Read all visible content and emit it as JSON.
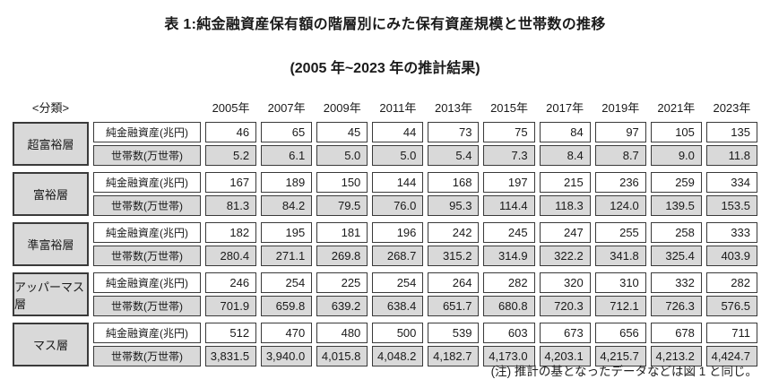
{
  "title": "表 1:純金融資産保有額の階層別にみた保有資産規模と世帯数の推移",
  "subtitle": "(2005 年~2023 年の推計結果)",
  "note": "(注) 推計の基となったデータなどは図 1 と同じ。",
  "colors": {
    "cell_gray": "#d9d9d9",
    "border": "#3a3a3a"
  },
  "table": {
    "classification_header": "<分類>",
    "years": [
      "2005年",
      "2007年",
      "2009年",
      "2011年",
      "2013年",
      "2015年",
      "2017年",
      "2019年",
      "2021年",
      "2023年"
    ],
    "row_labels": {
      "assets": "純金融資産(兆円)",
      "households": "世帯数(万世帯)"
    },
    "groups": [
      {
        "name": "超富裕層",
        "assets": [
          "46",
          "65",
          "45",
          "44",
          "73",
          "75",
          "84",
          "97",
          "105",
          "135"
        ],
        "households": [
          "5.2",
          "6.1",
          "5.0",
          "5.0",
          "5.4",
          "7.3",
          "8.4",
          "8.7",
          "9.0",
          "11.8"
        ]
      },
      {
        "name": "富裕層",
        "assets": [
          "167",
          "189",
          "150",
          "144",
          "168",
          "197",
          "215",
          "236",
          "259",
          "334"
        ],
        "households": [
          "81.3",
          "84.2",
          "79.5",
          "76.0",
          "95.3",
          "114.4",
          "118.3",
          "124.0",
          "139.5",
          "153.5"
        ]
      },
      {
        "name": "準富裕層",
        "assets": [
          "182",
          "195",
          "181",
          "196",
          "242",
          "245",
          "247",
          "255",
          "258",
          "333"
        ],
        "households": [
          "280.4",
          "271.1",
          "269.8",
          "268.7",
          "315.2",
          "314.9",
          "322.2",
          "341.8",
          "325.4",
          "403.9"
        ]
      },
      {
        "name": "アッパーマス層",
        "assets": [
          "246",
          "254",
          "225",
          "254",
          "264",
          "282",
          "320",
          "310",
          "332",
          "282"
        ],
        "households": [
          "701.9",
          "659.8",
          "639.2",
          "638.4",
          "651.7",
          "680.8",
          "720.3",
          "712.1",
          "726.3",
          "576.5"
        ]
      },
      {
        "name": "マス層",
        "assets": [
          "512",
          "470",
          "480",
          "500",
          "539",
          "603",
          "673",
          "656",
          "678",
          "711"
        ],
        "households": [
          "3,831.5",
          "3,940.0",
          "4,015.8",
          "4,048.2",
          "4,182.7",
          "4,173.0",
          "4,203.1",
          "4,215.7",
          "4,213.2",
          "4,424.7"
        ]
      }
    ]
  },
  "chart_data": {
    "type": "table",
    "title": "表 1:純金融資産保有額の階層別にみた保有資産規模と世帯数の推移",
    "subtitle": "(2005 年~2023 年の推計結果)",
    "categories": [
      "2005",
      "2007",
      "2009",
      "2011",
      "2013",
      "2015",
      "2017",
      "2019",
      "2021",
      "2023"
    ],
    "series": [
      {
        "name": "超富裕層 純金融資産(兆円)",
        "values": [
          46,
          65,
          45,
          44,
          73,
          75,
          84,
          97,
          105,
          135
        ]
      },
      {
        "name": "超富裕層 世帯数(万世帯)",
        "values": [
          5.2,
          6.1,
          5.0,
          5.0,
          5.4,
          7.3,
          8.4,
          8.7,
          9.0,
          11.8
        ]
      },
      {
        "name": "富裕層 純金融資産(兆円)",
        "values": [
          167,
          189,
          150,
          144,
          168,
          197,
          215,
          236,
          259,
          334
        ]
      },
      {
        "name": "富裕層 世帯数(万世帯)",
        "values": [
          81.3,
          84.2,
          79.5,
          76.0,
          95.3,
          114.4,
          118.3,
          124.0,
          139.5,
          153.5
        ]
      },
      {
        "name": "準富裕層 純金融資産(兆円)",
        "values": [
          182,
          195,
          181,
          196,
          242,
          245,
          247,
          255,
          258,
          333
        ]
      },
      {
        "name": "準富裕層 世帯数(万世帯)",
        "values": [
          280.4,
          271.1,
          269.8,
          268.7,
          315.2,
          314.9,
          322.2,
          341.8,
          325.4,
          403.9
        ]
      },
      {
        "name": "アッパーマス層 純金融資産(兆円)",
        "values": [
          246,
          254,
          225,
          254,
          264,
          282,
          320,
          310,
          332,
          282
        ]
      },
      {
        "name": "アッパーマス層 世帯数(万世帯)",
        "values": [
          701.9,
          659.8,
          639.2,
          638.4,
          651.7,
          680.8,
          720.3,
          712.1,
          726.3,
          576.5
        ]
      },
      {
        "name": "マス層 純金融資産(兆円)",
        "values": [
          512,
          470,
          480,
          500,
          539,
          603,
          673,
          656,
          678,
          711
        ]
      },
      {
        "name": "マス層 世帯数(万世帯)",
        "values": [
          3831.5,
          3940.0,
          4015.8,
          4048.2,
          4182.7,
          4173.0,
          4203.1,
          4215.7,
          4213.2,
          4424.7
        ]
      }
    ],
    "note": "(注) 推計の基となったデータなどは図 1 と同じ。"
  }
}
